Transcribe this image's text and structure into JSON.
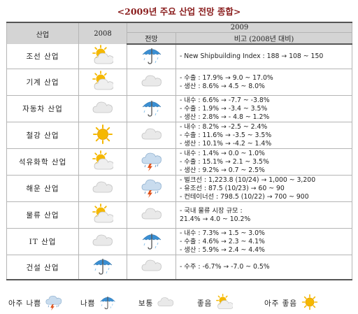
{
  "title": "<2009년 주요 산업 전망 종합>",
  "header": {
    "industry": "산업",
    "year2008": "2008",
    "year2009": "2009",
    "outlook": "전망",
    "remarks": "비고 (2008년 대비)"
  },
  "rows": [
    {
      "industry": "조선 산업",
      "w2008": "partly-sunny",
      "w2009": "umbrella",
      "remarks": [
        "- New Shipbuilding Index : 188 → 108 ~ 150"
      ]
    },
    {
      "industry": "기계 산업",
      "w2008": "partly-sunny",
      "w2009": "cloudy",
      "remarks": [
        "- 수출 : 17.9% → 9.0 ~ 17.0%",
        "- 생산 : 8.6% → 4.5 ~ 8.0%"
      ]
    },
    {
      "industry": "자동차 산업",
      "w2008": "cloudy",
      "w2009": "umbrella",
      "remarks": [
        "- 내수 : 6.6% → -7.7 ~ -3.8%",
        "- 수출 : 1.9% → -3.4 ~ 3.5%",
        "- 생산 : 2.8% → - 4.8 ~ 1.2%"
      ]
    },
    {
      "industry": "철강 산업",
      "w2008": "sunny",
      "w2009": "cloudy",
      "remarks": [
        "- 내수 : 8.2% → -2.5 ~ 2.4%",
        "- 수출 : 11.6% → -3.5 ~ 3.5%",
        "- 생산 : 10.1% → -4.2 ~ 1.4%"
      ]
    },
    {
      "industry": "석유화학 산업",
      "w2008": "partly-sunny",
      "w2009": "thunderstorm",
      "remarks": [
        "- 내수 : 1.4% → 0.0 ~ 1.0%",
        "- 수출 : 15.1% → 2.1 ~ 3.5%",
        "- 생산 : 9.2% → 0.7 ~ 2.5%"
      ]
    },
    {
      "industry": "해운 산업",
      "w2008": "cloudy",
      "w2009": "thunderstorm",
      "remarks": [
        "- 벌크선 : 1,223.8 (10/24) → 1,000 ~ 3,200",
        "- 유조선 : 87.5 (10/23) → 60 ~ 90",
        "- 컨테이너선 : 798.5 (10/22) → 700 ~ 900"
      ]
    },
    {
      "industry": "물류 산업",
      "w2008": "partly-sunny",
      "w2009": "cloudy",
      "remarks": [
        "- 국내 물류 시장 규모 :",
        "21.4% → 4.0 ~ 10.2%"
      ]
    },
    {
      "industry": "IT 산업",
      "w2008": "cloudy",
      "w2009": "umbrella",
      "remarks": [
        "- 내수 : 7.3% → 1.5 ~ 3.0%",
        "- 수출 : 4.6% → 2.3 ~ 4.1%",
        "- 생산 : 5.9% → 2.4 ~ 4.4%"
      ]
    },
    {
      "industry": "건설 산업",
      "w2008": "umbrella",
      "w2009": "cloudy",
      "remarks": [
        "- 수주 : -6.7% → -7.0 ~ 0.5%"
      ]
    }
  ],
  "legend": [
    {
      "label": "아주 나쁨",
      "icon": "thunderstorm"
    },
    {
      "label": "나쁨",
      "icon": "umbrella"
    },
    {
      "label": "보통",
      "icon": "cloudy"
    },
    {
      "label": "좋음",
      "icon": "partly-sunny"
    },
    {
      "label": "아주 좋음",
      "icon": "sunny"
    }
  ],
  "colors": {
    "header_bg": "#d4d4d4",
    "sun": "#f5b800",
    "cloud": "#e9e9e9",
    "umbrella": "#3a8fd3",
    "title": "#8a1d1d"
  }
}
